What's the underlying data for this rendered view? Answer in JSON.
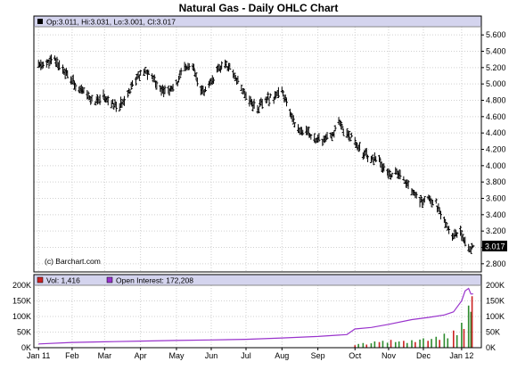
{
  "chart_data": {
    "type": "ohlc",
    "title": "Natural Gas - Daily OHLC Chart",
    "source_label": "(c) Barchart.com",
    "price_panel": {
      "header": {
        "open": "Op:3.011",
        "high": "Hi:3.031",
        "low": "Lo:3.001",
        "close": "Cl:3.017"
      },
      "last_close_label": "3.017",
      "y_ticks": [
        "5.600",
        "5.400",
        "5.200",
        "5.000",
        "4.800",
        "4.600",
        "4.400",
        "4.200",
        "4.000",
        "3.800",
        "3.600",
        "3.400",
        "3.200",
        "3.000",
        "2.800"
      ],
      "ylim": [
        2.7,
        5.7
      ],
      "grid": true,
      "close_path": [
        [
          "2011-01-03",
          5.22
        ],
        [
          "2011-01-10",
          5.25
        ],
        [
          "2011-01-17",
          5.3
        ],
        [
          "2011-01-24",
          5.18
        ],
        [
          "2011-01-31",
          5.05
        ],
        [
          "2011-02-07",
          4.95
        ],
        [
          "2011-02-14",
          4.85
        ],
        [
          "2011-02-21",
          4.78
        ],
        [
          "2011-02-28",
          4.85
        ],
        [
          "2011-03-07",
          4.75
        ],
        [
          "2011-03-14",
          4.72
        ],
        [
          "2011-03-21",
          4.9
        ],
        [
          "2011-03-28",
          5.05
        ],
        [
          "2011-04-04",
          5.15
        ],
        [
          "2011-04-11",
          5.1
        ],
        [
          "2011-04-18",
          4.95
        ],
        [
          "2011-04-25",
          4.9
        ],
        [
          "2011-05-02",
          5.0
        ],
        [
          "2011-05-09",
          5.2
        ],
        [
          "2011-05-16",
          5.2
        ],
        [
          "2011-05-23",
          4.9
        ],
        [
          "2011-05-30",
          4.95
        ],
        [
          "2011-06-06",
          5.15
        ],
        [
          "2011-06-13",
          5.25
        ],
        [
          "2011-06-20",
          5.15
        ],
        [
          "2011-06-27",
          4.95
        ],
        [
          "2011-07-04",
          4.8
        ],
        [
          "2011-07-11",
          4.7
        ],
        [
          "2011-07-18",
          4.8
        ],
        [
          "2011-07-25",
          4.85
        ],
        [
          "2011-08-01",
          4.9
        ],
        [
          "2011-08-08",
          4.65
        ],
        [
          "2011-08-15",
          4.45
        ],
        [
          "2011-08-22",
          4.4
        ],
        [
          "2011-08-29",
          4.35
        ],
        [
          "2011-09-05",
          4.3
        ],
        [
          "2011-09-12",
          4.35
        ],
        [
          "2011-09-19",
          4.5
        ],
        [
          "2011-09-26",
          4.4
        ],
        [
          "2011-10-03",
          4.3
        ],
        [
          "2011-10-10",
          4.15
        ],
        [
          "2011-10-17",
          4.1
        ],
        [
          "2011-10-24",
          4.05
        ],
        [
          "2011-10-31",
          3.9
        ],
        [
          "2011-11-07",
          3.9
        ],
        [
          "2011-11-14",
          3.85
        ],
        [
          "2011-11-21",
          3.7
        ],
        [
          "2011-11-28",
          3.55
        ],
        [
          "2011-12-05",
          3.6
        ],
        [
          "2011-12-12",
          3.55
        ],
        [
          "2011-12-19",
          3.3
        ],
        [
          "2011-12-26",
          3.15
        ],
        [
          "2012-01-02",
          3.2
        ],
        [
          "2012-01-09",
          3.0
        ],
        [
          "2012-01-13",
          3.017
        ]
      ]
    },
    "volume_panel": {
      "header": {
        "volume": "Vol: 1,416",
        "open_interest": "Open Interest: 172,208"
      },
      "y_ticks": [
        "200K",
        "150K",
        "100K",
        "50K",
        "0K"
      ],
      "ylim": [
        0,
        200000
      ],
      "series": [
        {
          "name": "Vol",
          "type": "bar",
          "values": [
            [
              "2011-10-03",
              8000
            ],
            [
              "2011-10-06",
              12000
            ],
            [
              "2011-10-10",
              15000
            ],
            [
              "2011-10-13",
              10000
            ],
            [
              "2011-10-17",
              14000
            ],
            [
              "2011-10-20",
              20000
            ],
            [
              "2011-10-24",
              18000
            ],
            [
              "2011-10-27",
              22000
            ],
            [
              "2011-10-31",
              16000
            ],
            [
              "2011-11-03",
              25000
            ],
            [
              "2011-11-07",
              18000
            ],
            [
              "2011-11-10",
              20000
            ],
            [
              "2011-11-14",
              22000
            ],
            [
              "2011-11-17",
              15000
            ],
            [
              "2011-11-21",
              24000
            ],
            [
              "2011-11-24",
              18000
            ],
            [
              "2011-11-28",
              26000
            ],
            [
              "2011-12-01",
              30000
            ],
            [
              "2011-12-05",
              22000
            ],
            [
              "2011-12-08",
              28000
            ],
            [
              "2011-12-12",
              35000
            ],
            [
              "2011-12-15",
              25000
            ],
            [
              "2011-12-19",
              45000
            ],
            [
              "2011-12-22",
              30000
            ],
            [
              "2011-12-27",
              55000
            ],
            [
              "2011-12-30",
              40000
            ],
            [
              "2012-01-03",
              80000
            ],
            [
              "2012-01-05",
              60000
            ],
            [
              "2012-01-09",
              135000
            ],
            [
              "2012-01-11",
              115000
            ],
            [
              "2012-01-12",
              165000
            ],
            [
              "2012-01-13",
              1416
            ]
          ]
        },
        {
          "name": "Open Interest",
          "type": "line",
          "values": [
            [
              "2011-01-03",
              12000
            ],
            [
              "2011-02-01",
              17000
            ],
            [
              "2011-03-01",
              19000
            ],
            [
              "2011-04-01",
              21000
            ],
            [
              "2011-05-01",
              23000
            ],
            [
              "2011-06-01",
              25000
            ],
            [
              "2011-07-01",
              27000
            ],
            [
              "2011-08-01",
              31000
            ],
            [
              "2011-09-01",
              36000
            ],
            [
              "2011-09-26",
              42000
            ],
            [
              "2011-10-03",
              60000
            ],
            [
              "2011-10-17",
              65000
            ],
            [
              "2011-11-01",
              75000
            ],
            [
              "2011-11-21",
              90000
            ],
            [
              "2011-12-05",
              97000
            ],
            [
              "2011-12-19",
              105000
            ],
            [
              "2011-12-27",
              115000
            ],
            [
              "2012-01-03",
              150000
            ],
            [
              "2012-01-06",
              182000
            ],
            [
              "2012-01-09",
              190000
            ],
            [
              "2012-01-11",
              172000
            ],
            [
              "2012-01-13",
              172208
            ]
          ]
        }
      ],
      "grid": true
    },
    "x_axis": {
      "ticks": [
        {
          "label": "Jan 11",
          "date": "2011-01-03"
        },
        {
          "label": "Feb",
          "date": "2011-02-01"
        },
        {
          "label": "Mar",
          "date": "2011-03-01"
        },
        {
          "label": "Apr",
          "date": "2011-04-01"
        },
        {
          "label": "May",
          "date": "2011-05-02"
        },
        {
          "label": "Jun",
          "date": "2011-06-01"
        },
        {
          "label": "Jul",
          "date": "2011-07-01"
        },
        {
          "label": "Aug",
          "date": "2011-08-01"
        },
        {
          "label": "Sep",
          "date": "2011-09-01"
        },
        {
          "label": "Oct",
          "date": "2011-10-03"
        },
        {
          "label": "Nov",
          "date": "2011-11-01"
        },
        {
          "label": "Dec",
          "date": "2011-12-01"
        },
        {
          "label": "Jan 12",
          "date": "2012-01-03"
        }
      ],
      "range": [
        "2010-12-30",
        "2012-01-20"
      ]
    },
    "colors": {
      "price_bars": "#000000",
      "volume_up": "#2e8b2e",
      "volume_down": "#cc2222",
      "open_interest": "#9933cc",
      "header_bg": "#d4d4ee",
      "last_label_bg": "#000000"
    }
  }
}
